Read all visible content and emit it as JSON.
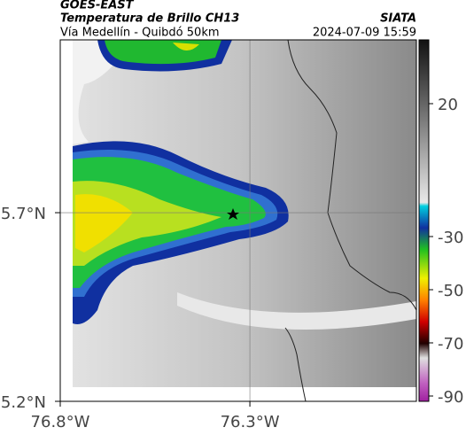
{
  "header": {
    "source": "GOES-EAST",
    "title": "Temperatura de Brillo CH13",
    "organization": "SIATA",
    "subtitle": "Vía Medellín - Quibdó 50km",
    "timestamp": "2024-07-09 15:59"
  },
  "map": {
    "lonlim": [
      -76.8,
      -75.861
    ],
    "latlim": [
      5.2,
      6.158
    ],
    "lat_ticks": [
      {
        "value": 5.7,
        "label": "5.7°N"
      },
      {
        "value": 5.2,
        "label": "5.2°N"
      }
    ],
    "lon_ticks": [
      {
        "value": -76.8,
        "label": "76.8°W"
      },
      {
        "value": -76.3,
        "label": "76.3°W"
      }
    ],
    "grid": true
  },
  "colorbar": {
    "lim": [
      44,
      -92
    ],
    "ticks": [
      20,
      -30,
      -50,
      -70,
      -90
    ]
  }
}
